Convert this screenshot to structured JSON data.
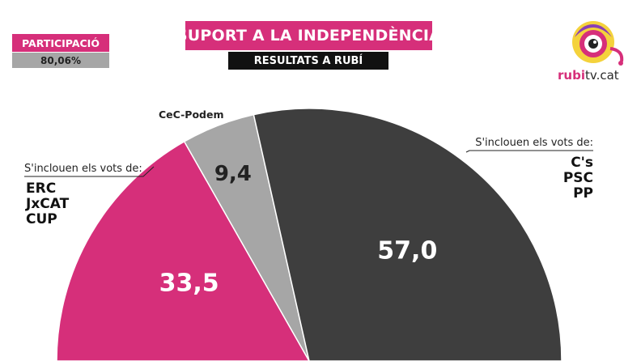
{
  "header": {
    "title": "SUPORT A LA INDEPENDÈNCIA",
    "subtitle": "RESULTATS A RUBÍ"
  },
  "participation": {
    "label": "PARTICIPACIÓ",
    "value": "80,06%"
  },
  "logo": {
    "icon": "eye-mascot-icon",
    "text_prefix": "rubi",
    "text_suffix": "tv.cat"
  },
  "chart_data": {
    "type": "pie",
    "shape": "semicircle",
    "title": "SUPORT A LA INDEPENDÈNCIA",
    "subtitle": "RESULTATS A RUBÍ",
    "slices": [
      {
        "label": "33,5",
        "value": 33.5,
        "color": "#d62f7a",
        "note": "S'inclouen els vots de:",
        "parties": [
          "ERC",
          "JxCAT",
          "CUP"
        ]
      },
      {
        "label": "9,4",
        "value": 9.4,
        "color": "#a6a6a6",
        "name": "CeC-Podem"
      },
      {
        "label": "57,0",
        "value": 57.0,
        "color": "#3e3e3e",
        "note": "S'inclouen els vots de:",
        "parties": [
          "C's",
          "PSC",
          "PP"
        ]
      }
    ]
  }
}
